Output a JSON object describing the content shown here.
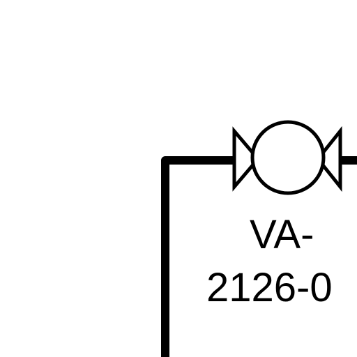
{
  "diagram": {
    "valve_label_line1": "VA-",
    "valve_label_line2": "2126-0",
    "stroke_color": "#000000",
    "background_color": "#ffffff",
    "symbol": "valve-icon"
  }
}
